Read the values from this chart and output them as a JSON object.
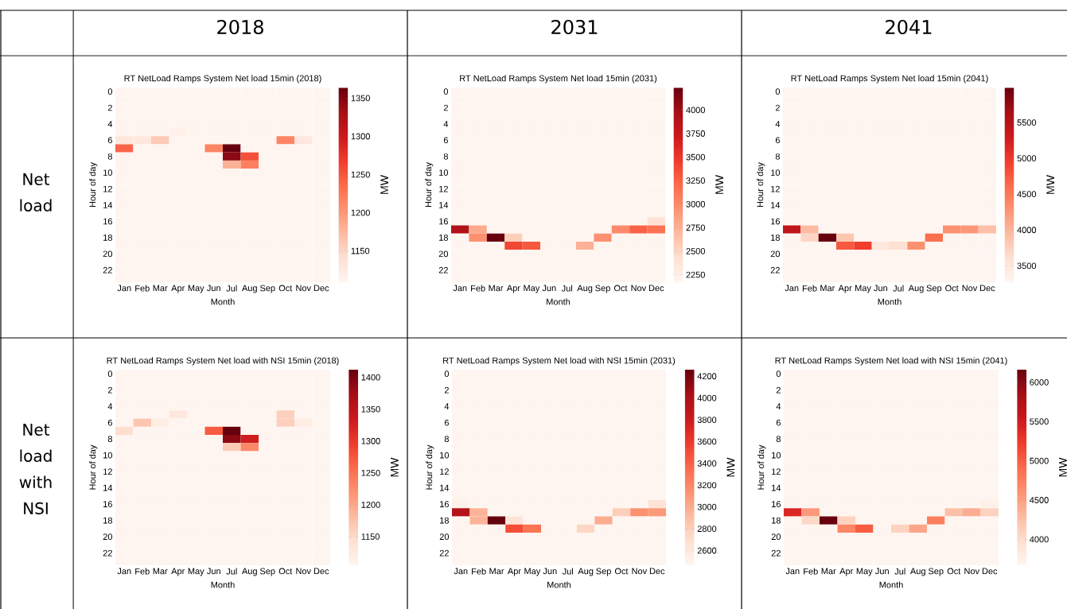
{
  "chart_data": [
    {
      "type": "other",
      "annotations": [
        "2018",
        "2031",
        "2041",
        "Net load",
        "Net load with NSI"
      ]
    },
    {
      "type": "heatmap",
      "title": "RT NetLoad Ramps System Net load 15min (2018)",
      "xlabel": "Month",
      "ylabel": "Hour of day",
      "clabel": "MW",
      "categories": [
        "Jan",
        "Feb",
        "Mar",
        "Apr",
        "May",
        "Jun",
        "Jul",
        "Aug",
        "Sep",
        "Oct",
        "Nov",
        "Dec"
      ],
      "y_categories": [
        "0",
        null,
        "2",
        null,
        "4",
        null,
        "6",
        null,
        "8",
        null,
        "10",
        null,
        "12",
        null,
        "14",
        null,
        "16",
        null,
        "18",
        null,
        "20",
        null,
        "22",
        null
      ],
      "clim": [
        1109,
        1364
      ],
      "cticks": [
        1150,
        1200,
        1250,
        1300,
        1350
      ],
      "cells": [
        [
          1109,
          1109,
          1109,
          1109,
          1109,
          1109,
          1109,
          1109,
          1109,
          1109,
          1109,
          1109
        ],
        [
          1109,
          1109,
          1109,
          1109,
          1109,
          1109,
          1109,
          1109,
          1109,
          1109,
          1109,
          1109
        ],
        [
          1109,
          1109,
          1109,
          1109,
          1109,
          1109,
          1109,
          1109,
          1109,
          1109,
          1109,
          1109
        ],
        [
          1109,
          1109,
          1109,
          1109,
          1109,
          1109,
          1109,
          1109,
          1109,
          1109,
          1109,
          1109
        ],
        [
          1109,
          1109,
          1109,
          1109,
          1109,
          1109,
          1109,
          1109,
          1109,
          1109,
          1109,
          1109
        ],
        [
          1109,
          1109,
          1109,
          1115,
          1109,
          1109,
          1109,
          1109,
          1109,
          1109,
          1109,
          1109
        ],
        [
          1130,
          1130,
          1160,
          1109,
          1109,
          1109,
          1109,
          1109,
          1109,
          1215,
          1130,
          1109
        ],
        [
          1240,
          1109,
          1109,
          1109,
          1109,
          1215,
          1364,
          1109,
          1109,
          1109,
          1109,
          1109
        ],
        [
          1109,
          1109,
          1109,
          1109,
          1109,
          1109,
          1345,
          1255,
          1109,
          1109,
          1109,
          1109
        ],
        [
          1109,
          1109,
          1109,
          1109,
          1109,
          1109,
          1180,
          1220,
          1109,
          1109,
          1109,
          1109
        ],
        [
          1109,
          1109,
          1109,
          1109,
          1109,
          1109,
          1109,
          1109,
          1109,
          1109,
          1109,
          1109
        ],
        [
          1109,
          1109,
          1109,
          1109,
          1109,
          1109,
          1109,
          1109,
          1109,
          1109,
          1109,
          1109
        ],
        [
          1109,
          1109,
          1109,
          1109,
          1109,
          1109,
          1109,
          1109,
          1109,
          1109,
          1109,
          1109
        ],
        [
          1109,
          1109,
          1109,
          1109,
          1109,
          1109,
          1109,
          1109,
          1109,
          1109,
          1109,
          1109
        ],
        [
          1109,
          1109,
          1109,
          1109,
          1109,
          1109,
          1109,
          1109,
          1109,
          1109,
          1109,
          1109
        ],
        [
          1109,
          1109,
          1109,
          1109,
          1109,
          1109,
          1109,
          1109,
          1109,
          1109,
          1109,
          1109
        ],
        [
          1109,
          1109,
          1109,
          1109,
          1109,
          1109,
          1109,
          1109,
          1109,
          1109,
          1109,
          1109
        ],
        [
          1109,
          1109,
          1109,
          1109,
          1109,
          1109,
          1109,
          1109,
          1109,
          1109,
          1109,
          1109
        ],
        [
          1109,
          1109,
          1109,
          1109,
          1109,
          1109,
          1109,
          1109,
          1109,
          1109,
          1109,
          1109
        ],
        [
          1109,
          1109,
          1109,
          1109,
          1109,
          1109,
          1109,
          1109,
          1109,
          1109,
          1109,
          1109
        ],
        [
          1109,
          1109,
          1109,
          1109,
          1109,
          1109,
          1109,
          1109,
          1109,
          1109,
          1109,
          1109
        ],
        [
          1109,
          1109,
          1109,
          1109,
          1109,
          1109,
          1109,
          1109,
          1109,
          1109,
          1109,
          1109
        ],
        [
          1109,
          1109,
          1109,
          1109,
          1109,
          1109,
          1109,
          1109,
          1109,
          1109,
          1109,
          1109
        ],
        [
          1109,
          1109,
          1109,
          1109,
          1109,
          1109,
          1109,
          1109,
          1109,
          1109,
          1109,
          1109
        ]
      ]
    },
    {
      "type": "heatmap",
      "title": "RT NetLoad Ramps System Net load 15min (2031)",
      "xlabel": "Month",
      "ylabel": "Hour of day",
      "clabel": "MW",
      "categories": [
        "Jan",
        "Feb",
        "Mar",
        "Apr",
        "May",
        "Jun",
        "Jul",
        "Aug",
        "Sep",
        "Oct",
        "Nov",
        "Dec"
      ],
      "y_categories": [
        "0",
        null,
        "2",
        null,
        "4",
        null,
        "6",
        null,
        "8",
        null,
        "10",
        null,
        "12",
        null,
        "14",
        null,
        "16",
        null,
        "18",
        null,
        "20",
        null,
        "22",
        null
      ],
      "clim": [
        2170,
        4240
      ],
      "cticks": [
        2250,
        2500,
        2750,
        3000,
        3250,
        3500,
        3750,
        4000
      ],
      "cells": [
        [
          2170,
          2170,
          2170,
          2170,
          2170,
          2170,
          2170,
          2170,
          2170,
          2170,
          2170,
          2170
        ],
        [
          2170,
          2170,
          2170,
          2170,
          2170,
          2170,
          2170,
          2170,
          2170,
          2170,
          2170,
          2170
        ],
        [
          2170,
          2170,
          2170,
          2170,
          2170,
          2170,
          2170,
          2170,
          2170,
          2170,
          2170,
          2170
        ],
        [
          2170,
          2170,
          2170,
          2170,
          2170,
          2170,
          2170,
          2170,
          2170,
          2170,
          2170,
          2170
        ],
        [
          2170,
          2170,
          2170,
          2170,
          2170,
          2170,
          2170,
          2170,
          2170,
          2170,
          2170,
          2170
        ],
        [
          2170,
          2170,
          2170,
          2170,
          2170,
          2170,
          2170,
          2170,
          2170,
          2170,
          2170,
          2170
        ],
        [
          2170,
          2170,
          2170,
          2170,
          2170,
          2170,
          2170,
          2170,
          2170,
          2170,
          2170,
          2170
        ],
        [
          2170,
          2170,
          2170,
          2170,
          2170,
          2170,
          2170,
          2170,
          2170,
          2170,
          2170,
          2170
        ],
        [
          2170,
          2170,
          2170,
          2170,
          2170,
          2170,
          2170,
          2170,
          2170,
          2170,
          2170,
          2170
        ],
        [
          2170,
          2170,
          2170,
          2170,
          2170,
          2170,
          2170,
          2170,
          2170,
          2170,
          2170,
          2170
        ],
        [
          2170,
          2170,
          2170,
          2170,
          2170,
          2170,
          2170,
          2170,
          2170,
          2170,
          2170,
          2170
        ],
        [
          2170,
          2170,
          2170,
          2170,
          2170,
          2170,
          2170,
          2170,
          2170,
          2170,
          2170,
          2170
        ],
        [
          2170,
          2170,
          2170,
          2170,
          2170,
          2170,
          2170,
          2170,
          2170,
          2170,
          2170,
          2170
        ],
        [
          2170,
          2170,
          2170,
          2170,
          2170,
          2170,
          2170,
          2170,
          2170,
          2170,
          2170,
          2170
        ],
        [
          2170,
          2170,
          2170,
          2170,
          2170,
          2170,
          2170,
          2170,
          2170,
          2170,
          2170,
          2170
        ],
        [
          2170,
          2170,
          2170,
          2170,
          2170,
          2170,
          2170,
          2170,
          2170,
          2170,
          2170,
          2170
        ],
        [
          2170,
          2170,
          2170,
          2170,
          2170,
          2170,
          2170,
          2170,
          2170,
          2170,
          2170,
          2400
        ],
        [
          3900,
          2800,
          2170,
          2170,
          2170,
          2170,
          2170,
          2170,
          2170,
          3000,
          3250,
          3150
        ],
        [
          2170,
          2950,
          4240,
          2550,
          2170,
          2170,
          2170,
          2170,
          2950,
          2170,
          2170,
          2170
        ],
        [
          2170,
          2170,
          2170,
          3400,
          3300,
          2170,
          2170,
          2750,
          2170,
          2170,
          2170,
          2170
        ],
        [
          2170,
          2170,
          2170,
          2170,
          2170,
          2170,
          2170,
          2170,
          2170,
          2170,
          2170,
          2170
        ],
        [
          2170,
          2170,
          2170,
          2170,
          2170,
          2170,
          2170,
          2170,
          2170,
          2170,
          2170,
          2170
        ],
        [
          2170,
          2170,
          2170,
          2170,
          2170,
          2170,
          2170,
          2170,
          2170,
          2170,
          2170,
          2170
        ],
        [
          2170,
          2170,
          2170,
          2170,
          2170,
          2170,
          2170,
          2170,
          2170,
          2170,
          2170,
          2170
        ]
      ]
    },
    {
      "type": "heatmap",
      "title": "RT NetLoad Ramps System Net load 15min (2041)",
      "xlabel": "Month",
      "ylabel": "Hour of day",
      "clabel": "MW",
      "categories": [
        "Jan",
        "Feb",
        "Mar",
        "Apr",
        "May",
        "Jun",
        "Jul",
        "Aug",
        "Sep",
        "Oct",
        "Nov",
        "Dec"
      ],
      "y_categories": [
        "0",
        null,
        "2",
        null,
        "4",
        null,
        "6",
        null,
        "8",
        null,
        "10",
        null,
        "12",
        null,
        "14",
        null,
        "16",
        null,
        "18",
        null,
        "20",
        null,
        "22",
        null
      ],
      "clim": [
        3270,
        5990
      ],
      "cticks": [
        3500,
        4000,
        4500,
        5000,
        5500
      ],
      "cells": [
        [
          3270,
          3270,
          3270,
          3270,
          3270,
          3270,
          3270,
          3270,
          3270,
          3270,
          3270,
          3270
        ],
        [
          3270,
          3270,
          3270,
          3270,
          3270,
          3270,
          3270,
          3270,
          3270,
          3270,
          3270,
          3270
        ],
        [
          3270,
          3270,
          3270,
          3270,
          3270,
          3270,
          3270,
          3270,
          3270,
          3270,
          3270,
          3270
        ],
        [
          3270,
          3270,
          3270,
          3270,
          3270,
          3270,
          3270,
          3270,
          3270,
          3270,
          3270,
          3270
        ],
        [
          3270,
          3270,
          3270,
          3270,
          3270,
          3270,
          3270,
          3270,
          3270,
          3270,
          3270,
          3270
        ],
        [
          3270,
          3270,
          3270,
          3270,
          3270,
          3270,
          3270,
          3270,
          3270,
          3270,
          3270,
          3270
        ],
        [
          3270,
          3270,
          3270,
          3270,
          3270,
          3270,
          3270,
          3270,
          3270,
          3270,
          3270,
          3270
        ],
        [
          3270,
          3270,
          3270,
          3270,
          3270,
          3270,
          3270,
          3270,
          3270,
          3270,
          3270,
          3270
        ],
        [
          3270,
          3270,
          3270,
          3270,
          3270,
          3270,
          3270,
          3270,
          3270,
          3270,
          3270,
          3270
        ],
        [
          3270,
          3270,
          3270,
          3270,
          3270,
          3270,
          3270,
          3270,
          3270,
          3270,
          3270,
          3270
        ],
        [
          3270,
          3270,
          3270,
          3270,
          3270,
          3270,
          3270,
          3270,
          3270,
          3270,
          3270,
          3270
        ],
        [
          3270,
          3270,
          3270,
          3270,
          3270,
          3270,
          3270,
          3270,
          3270,
          3270,
          3270,
          3270
        ],
        [
          3270,
          3270,
          3270,
          3270,
          3270,
          3270,
          3270,
          3270,
          3270,
          3270,
          3270,
          3270
        ],
        [
          3270,
          3270,
          3270,
          3270,
          3270,
          3270,
          3270,
          3270,
          3270,
          3270,
          3270,
          3270
        ],
        [
          3270,
          3270,
          3270,
          3270,
          3270,
          3270,
          3270,
          3270,
          3270,
          3270,
          3270,
          3270
        ],
        [
          3270,
          3270,
          3270,
          3270,
          3270,
          3270,
          3270,
          3270,
          3270,
          3270,
          3270,
          3270
        ],
        [
          3270,
          3270,
          3270,
          3270,
          3270,
          3270,
          3270,
          3270,
          3270,
          3270,
          3270,
          3270
        ],
        [
          5400,
          3950,
          3270,
          3270,
          3270,
          3270,
          3270,
          3270,
          3270,
          4300,
          4250,
          3900
        ],
        [
          3270,
          3700,
          5990,
          3850,
          3270,
          3270,
          3270,
          3270,
          4600,
          3270,
          3270,
          3270
        ],
        [
          3270,
          3270,
          3270,
          4750,
          4950,
          3500,
          3600,
          4300,
          3270,
          3270,
          3270,
          3270
        ],
        [
          3270,
          3270,
          3270,
          3270,
          3270,
          3270,
          3270,
          3270,
          3270,
          3270,
          3270,
          3270
        ],
        [
          3270,
          3270,
          3270,
          3270,
          3270,
          3270,
          3270,
          3270,
          3270,
          3270,
          3270,
          3270
        ],
        [
          3270,
          3270,
          3270,
          3270,
          3270,
          3270,
          3270,
          3270,
          3270,
          3270,
          3270,
          3270
        ],
        [
          3270,
          3270,
          3270,
          3270,
          3270,
          3270,
          3270,
          3270,
          3270,
          3270,
          3270,
          3270
        ]
      ]
    },
    {
      "type": "heatmap",
      "title": "RT NetLoad Ramps System Net load with NSI 15min (2018)",
      "xlabel": "Month",
      "ylabel": "Hour of day",
      "clabel": "MW",
      "categories": [
        "Jan",
        "Feb",
        "Mar",
        "Apr",
        "May",
        "Jun",
        "Jul",
        "Aug",
        "Sep",
        "Oct",
        "Nov",
        "Dec"
      ],
      "y_categories": [
        "0",
        null,
        "2",
        null,
        "4",
        null,
        "6",
        null,
        "8",
        null,
        "10",
        null,
        "12",
        null,
        "14",
        null,
        "16",
        null,
        "18",
        null,
        "20",
        null,
        "22",
        null
      ],
      "clim": [
        1105,
        1412
      ],
      "cticks": [
        1150,
        1200,
        1250,
        1300,
        1350,
        1400
      ],
      "cells": [
        [
          1105,
          1105,
          1105,
          1105,
          1105,
          1105,
          1105,
          1105,
          1105,
          1105,
          1105,
          1105
        ],
        [
          1105,
          1105,
          1105,
          1105,
          1105,
          1105,
          1105,
          1105,
          1105,
          1105,
          1105,
          1105
        ],
        [
          1105,
          1105,
          1105,
          1105,
          1105,
          1105,
          1105,
          1105,
          1105,
          1105,
          1105,
          1105
        ],
        [
          1105,
          1105,
          1105,
          1105,
          1105,
          1105,
          1105,
          1105,
          1105,
          1105,
          1105,
          1105
        ],
        [
          1105,
          1105,
          1105,
          1105,
          1105,
          1105,
          1105,
          1105,
          1105,
          1105,
          1105,
          1105
        ],
        [
          1105,
          1105,
          1105,
          1130,
          1105,
          1105,
          1105,
          1105,
          1105,
          1160,
          1105,
          1105
        ],
        [
          1105,
          1170,
          1120,
          1105,
          1105,
          1105,
          1105,
          1105,
          1105,
          1160,
          1120,
          1105
        ],
        [
          1145,
          1105,
          1105,
          1105,
          1105,
          1270,
          1412,
          1105,
          1105,
          1105,
          1105,
          1105
        ],
        [
          1105,
          1105,
          1105,
          1105,
          1105,
          1105,
          1390,
          1330,
          1105,
          1105,
          1105,
          1105
        ],
        [
          1105,
          1105,
          1105,
          1105,
          1105,
          1105,
          1165,
          1230,
          1105,
          1105,
          1105,
          1105
        ],
        [
          1105,
          1105,
          1105,
          1105,
          1105,
          1105,
          1105,
          1105,
          1105,
          1105,
          1105,
          1105
        ],
        [
          1105,
          1105,
          1105,
          1105,
          1105,
          1105,
          1105,
          1105,
          1105,
          1105,
          1105,
          1105
        ],
        [
          1105,
          1105,
          1105,
          1105,
          1105,
          1105,
          1105,
          1105,
          1105,
          1105,
          1105,
          1105
        ],
        [
          1105,
          1105,
          1105,
          1105,
          1105,
          1105,
          1105,
          1105,
          1105,
          1105,
          1105,
          1105
        ],
        [
          1105,
          1105,
          1105,
          1105,
          1105,
          1105,
          1105,
          1105,
          1105,
          1105,
          1105,
          1105
        ],
        [
          1105,
          1105,
          1105,
          1105,
          1105,
          1105,
          1105,
          1105,
          1105,
          1105,
          1105,
          1105
        ],
        [
          1105,
          1105,
          1105,
          1105,
          1105,
          1105,
          1105,
          1105,
          1105,
          1105,
          1105,
          1105
        ],
        [
          1105,
          1105,
          1105,
          1105,
          1105,
          1105,
          1105,
          1105,
          1105,
          1105,
          1105,
          1105
        ],
        [
          1105,
          1105,
          1105,
          1105,
          1105,
          1105,
          1105,
          1105,
          1105,
          1105,
          1105,
          1105
        ],
        [
          1105,
          1105,
          1105,
          1105,
          1105,
          1105,
          1105,
          1105,
          1105,
          1105,
          1105,
          1105
        ],
        [
          1105,
          1105,
          1105,
          1105,
          1105,
          1105,
          1105,
          1105,
          1105,
          1105,
          1105,
          1105
        ],
        [
          1105,
          1105,
          1105,
          1105,
          1105,
          1105,
          1105,
          1105,
          1105,
          1105,
          1105,
          1105
        ],
        [
          1105,
          1105,
          1105,
          1105,
          1105,
          1105,
          1105,
          1105,
          1105,
          1105,
          1105,
          1105
        ],
        [
          1105,
          1105,
          1105,
          1105,
          1105,
          1105,
          1105,
          1105,
          1105,
          1105,
          1105,
          1105
        ]
      ]
    },
    {
      "type": "heatmap",
      "title": "RT NetLoad Ramps System Net load with NSI 15min (2031)",
      "xlabel": "Month",
      "ylabel": "Hour of day",
      "clabel": "MW",
      "categories": [
        "Jan",
        "Feb",
        "Mar",
        "Apr",
        "May",
        "Jun",
        "Jul",
        "Aug",
        "Sep",
        "Oct",
        "Nov",
        "Dec"
      ],
      "y_categories": [
        "0",
        null,
        "2",
        null,
        "4",
        null,
        "6",
        null,
        "8",
        null,
        "10",
        null,
        "12",
        null,
        "14",
        null,
        "16",
        null,
        "18",
        null,
        "20",
        null,
        "22",
        null
      ],
      "clim": [
        2465,
        4260
      ],
      "cticks": [
        2600,
        2800,
        3000,
        3200,
        3400,
        3600,
        3800,
        4000,
        4200
      ],
      "cells": [
        [
          2465,
          2465,
          2465,
          2465,
          2465,
          2465,
          2465,
          2465,
          2465,
          2465,
          2465,
          2465
        ],
        [
          2465,
          2465,
          2465,
          2465,
          2465,
          2465,
          2465,
          2465,
          2465,
          2465,
          2465,
          2465
        ],
        [
          2465,
          2465,
          2465,
          2465,
          2465,
          2465,
          2465,
          2465,
          2465,
          2465,
          2465,
          2465
        ],
        [
          2465,
          2465,
          2465,
          2465,
          2465,
          2465,
          2465,
          2465,
          2465,
          2465,
          2465,
          2465
        ],
        [
          2465,
          2465,
          2465,
          2465,
          2465,
          2465,
          2465,
          2465,
          2465,
          2465,
          2465,
          2465
        ],
        [
          2465,
          2465,
          2465,
          2465,
          2465,
          2465,
          2465,
          2465,
          2465,
          2465,
          2465,
          2465
        ],
        [
          2465,
          2465,
          2465,
          2465,
          2465,
          2465,
          2465,
          2465,
          2465,
          2465,
          2465,
          2465
        ],
        [
          2465,
          2465,
          2465,
          2465,
          2465,
          2465,
          2465,
          2465,
          2465,
          2465,
          2465,
          2465
        ],
        [
          2465,
          2465,
          2465,
          2465,
          2465,
          2465,
          2465,
          2465,
          2465,
          2465,
          2465,
          2465
        ],
        [
          2465,
          2465,
          2465,
          2465,
          2465,
          2465,
          2465,
          2465,
          2465,
          2465,
          2465,
          2465
        ],
        [
          2465,
          2465,
          2465,
          2465,
          2465,
          2465,
          2465,
          2465,
          2465,
          2465,
          2465,
          2465
        ],
        [
          2465,
          2465,
          2465,
          2465,
          2465,
          2465,
          2465,
          2465,
          2465,
          2465,
          2465,
          2465
        ],
        [
          2465,
          2465,
          2465,
          2465,
          2465,
          2465,
          2465,
          2465,
          2465,
          2465,
          2465,
          2465
        ],
        [
          2465,
          2465,
          2465,
          2465,
          2465,
          2465,
          2465,
          2465,
          2465,
          2465,
          2465,
          2465
        ],
        [
          2465,
          2465,
          2465,
          2465,
          2465,
          2465,
          2465,
          2465,
          2465,
          2465,
          2465,
          2465
        ],
        [
          2465,
          2465,
          2465,
          2465,
          2465,
          2465,
          2465,
          2465,
          2465,
          2465,
          2465,
          2465
        ],
        [
          2520,
          2465,
          2465,
          2465,
          2465,
          2465,
          2465,
          2465,
          2465,
          2465,
          2465,
          2650
        ],
        [
          3950,
          2950,
          2465,
          2465,
          2465,
          2465,
          2465,
          2465,
          2465,
          2800,
          3150,
          3100
        ],
        [
          2465,
          2950,
          4260,
          2650,
          2465,
          2465,
          2465,
          2465,
          3000,
          2465,
          2465,
          2465
        ],
        [
          2465,
          2465,
          2465,
          3500,
          3300,
          2465,
          2465,
          2750,
          2465,
          2465,
          2465,
          2465
        ],
        [
          2465,
          2465,
          2465,
          2465,
          2465,
          2465,
          2465,
          2465,
          2465,
          2465,
          2465,
          2465
        ],
        [
          2465,
          2465,
          2465,
          2465,
          2465,
          2465,
          2465,
          2465,
          2465,
          2465,
          2465,
          2465
        ],
        [
          2465,
          2465,
          2465,
          2465,
          2465,
          2465,
          2465,
          2465,
          2465,
          2465,
          2465,
          2465
        ],
        [
          2465,
          2465,
          2465,
          2465,
          2465,
          2465,
          2465,
          2465,
          2465,
          2465,
          2465,
          2465
        ]
      ]
    },
    {
      "type": "heatmap",
      "title": "RT NetLoad Ramps System Net load with NSI 15min (2041)",
      "xlabel": "Month",
      "ylabel": "Hour of day",
      "clabel": "MW",
      "categories": [
        "Jan",
        "Feb",
        "Mar",
        "Apr",
        "May",
        "Jun",
        "Jul",
        "Aug",
        "Sep",
        "Oct",
        "Nov",
        "Dec"
      ],
      "y_categories": [
        "0",
        null,
        "2",
        null,
        "4",
        null,
        "6",
        null,
        "8",
        null,
        "10",
        null,
        "12",
        null,
        "14",
        null,
        "16",
        null,
        "18",
        null,
        "20",
        null,
        "22",
        null
      ],
      "clim": [
        3670,
        6160
      ],
      "cticks": [
        4000,
        4500,
        5000,
        5500,
        6000
      ],
      "cells": [
        [
          3670,
          3670,
          3670,
          3670,
          3670,
          3670,
          3670,
          3670,
          3670,
          3670,
          3670,
          3670
        ],
        [
          3670,
          3670,
          3670,
          3670,
          3670,
          3670,
          3670,
          3670,
          3670,
          3670,
          3670,
          3670
        ],
        [
          3670,
          3670,
          3670,
          3670,
          3670,
          3670,
          3670,
          3670,
          3670,
          3670,
          3670,
          3670
        ],
        [
          3670,
          3670,
          3670,
          3670,
          3670,
          3670,
          3670,
          3670,
          3670,
          3670,
          3670,
          3670
        ],
        [
          3670,
          3670,
          3670,
          3670,
          3670,
          3670,
          3670,
          3670,
          3670,
          3670,
          3670,
          3670
        ],
        [
          3670,
          3670,
          3670,
          3670,
          3670,
          3670,
          3670,
          3670,
          3670,
          3670,
          3670,
          3670
        ],
        [
          3670,
          3670,
          3670,
          3670,
          3670,
          3670,
          3670,
          3670,
          3670,
          3670,
          3670,
          3670
        ],
        [
          3670,
          3670,
          3670,
          3670,
          3670,
          3670,
          3670,
          3670,
          3670,
          3670,
          3670,
          3670
        ],
        [
          3670,
          3670,
          3670,
          3670,
          3670,
          3670,
          3670,
          3670,
          3670,
          3670,
          3670,
          3670
        ],
        [
          3670,
          3670,
          3670,
          3670,
          3670,
          3670,
          3670,
          3670,
          3670,
          3670,
          3670,
          3670
        ],
        [
          3670,
          3670,
          3670,
          3670,
          3670,
          3670,
          3670,
          3670,
          3670,
          3670,
          3670,
          3670
        ],
        [
          3670,
          3670,
          3670,
          3670,
          3670,
          3670,
          3670,
          3670,
          3670,
          3670,
          3670,
          3670
        ],
        [
          3670,
          3670,
          3670,
          3670,
          3670,
          3670,
          3670,
          3670,
          3670,
          3670,
          3670,
          3670
        ],
        [
          3670,
          3670,
          3670,
          3670,
          3670,
          3670,
          3670,
          3670,
          3670,
          3670,
          3670,
          3670
        ],
        [
          3670,
          3670,
          3670,
          3670,
          3670,
          3670,
          3670,
          3670,
          3670,
          3670,
          3670,
          3670
        ],
        [
          3670,
          3670,
          3670,
          3670,
          3670,
          3670,
          3670,
          3670,
          3670,
          3670,
          3670,
          3670
        ],
        [
          3670,
          3670,
          3670,
          3670,
          3670,
          3670,
          3670,
          3670,
          3670,
          3670,
          3670,
          3750
        ],
        [
          5400,
          4550,
          3670,
          3670,
          3670,
          3670,
          3670,
          3670,
          3670,
          4250,
          4400,
          4100
        ],
        [
          3670,
          4050,
          6160,
          4100,
          3670,
          3670,
          3670,
          3670,
          4750,
          3670,
          3670,
          3670
        ],
        [
          3670,
          3670,
          3670,
          4700,
          5000,
          3670,
          4100,
          4450,
          3670,
          3670,
          3670,
          3670
        ],
        [
          3670,
          3670,
          3670,
          3670,
          3670,
          3670,
          3670,
          3670,
          3670,
          3670,
          3670,
          3670
        ],
        [
          3670,
          3670,
          3670,
          3670,
          3670,
          3670,
          3670,
          3670,
          3670,
          3670,
          3670,
          3670
        ],
        [
          3670,
          3670,
          3670,
          3670,
          3670,
          3670,
          3670,
          3670,
          3670,
          3670,
          3670,
          3670
        ],
        [
          3670,
          3670,
          3670,
          3670,
          3670,
          3670,
          3670,
          3670,
          3670,
          3670,
          3670,
          3670
        ]
      ]
    }
  ]
}
